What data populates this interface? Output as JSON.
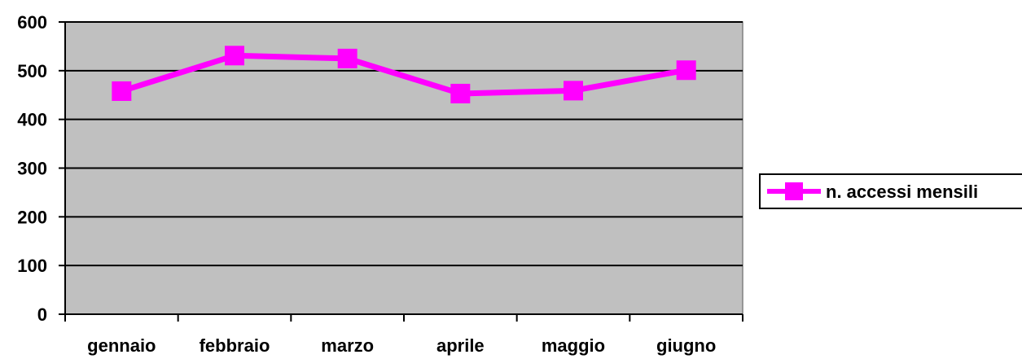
{
  "chart_data": {
    "type": "line",
    "categories": [
      "gennaio",
      "febbraio",
      "marzo",
      "aprile",
      "maggio",
      "giugno"
    ],
    "series": [
      {
        "name": "n. accessi mensili",
        "values": [
          458,
          531,
          525,
          453,
          459,
          501
        ],
        "color": "#ff00ff",
        "marker": "square"
      }
    ],
    "title": "",
    "xlabel": "",
    "ylabel": "",
    "ylim": [
      0,
      600
    ],
    "yticks": [
      0,
      100,
      200,
      300,
      400,
      500,
      600
    ],
    "grid": true,
    "plot_background": "#c0c0c0",
    "legend_position": "right"
  }
}
